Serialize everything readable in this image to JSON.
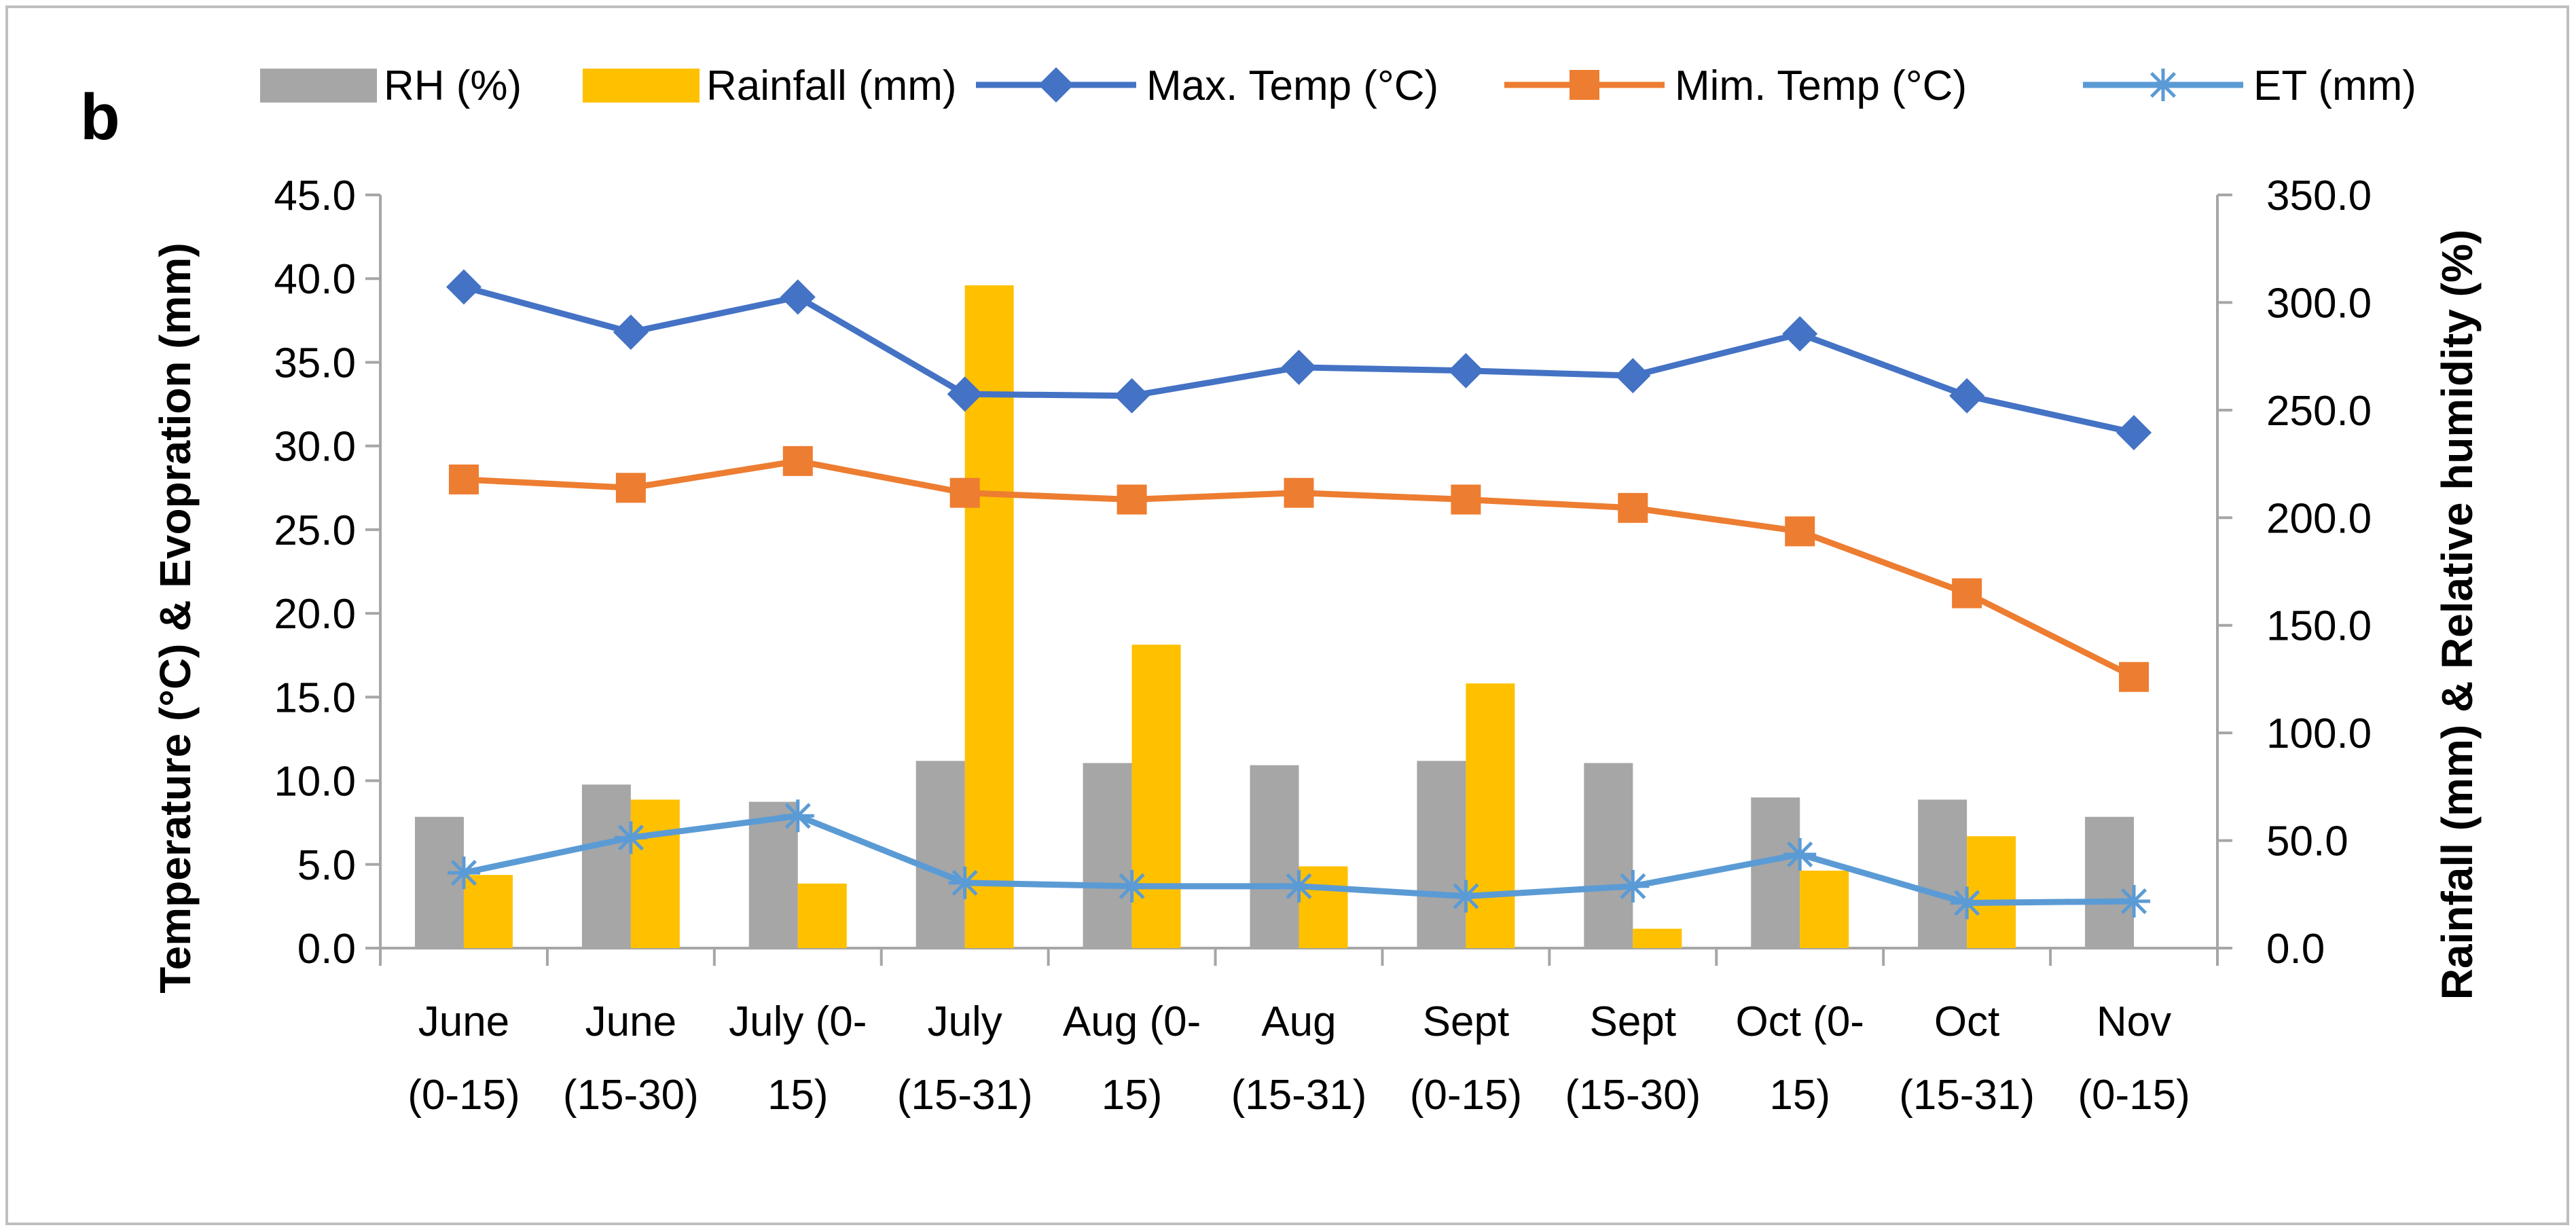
{
  "panel_label": "b",
  "colors": {
    "rh": "#a6a6a6",
    "rainfall": "#ffc000",
    "max_temp": "#4472c4",
    "min_temp": "#ed7d31",
    "et": "#5b9bd5",
    "axis": "#a6a6a6"
  },
  "chart_data": {
    "type": "bar+line (dual axis)",
    "categories": [
      [
        "June",
        "(0-15)"
      ],
      [
        "June",
        "(15-30)"
      ],
      [
        "July (0-",
        "15)"
      ],
      [
        "July",
        "(15-31)"
      ],
      [
        "Aug (0-",
        "15)"
      ],
      [
        "Aug",
        "(15-31)"
      ],
      [
        "Sept",
        "(0-15)"
      ],
      [
        "Sept",
        "(15-30)"
      ],
      [
        "Oct (0-",
        "15)"
      ],
      [
        "Oct",
        "(15-31)"
      ],
      [
        "Nov",
        "(0-15)"
      ]
    ],
    "left_axis": {
      "label": "Temperature (°C) & Evopration (mm)",
      "min": 0,
      "max": 45,
      "step": 5,
      "ticks": [
        "0.0",
        "5.0",
        "10.0",
        "15.0",
        "20.0",
        "25.0",
        "30.0",
        "35.0",
        "40.0",
        "45.0"
      ]
    },
    "right_axis": {
      "label": "Rainfall (mm) & Relative humidity (%)",
      "min": 0,
      "max": 350,
      "step": 50,
      "ticks": [
        "0.0",
        "50.0",
        "100.0",
        "150.0",
        "200.0",
        "250.0",
        "300.0",
        "350.0"
      ]
    },
    "bar_series": [
      {
        "name": "RH (%)",
        "axis": "right",
        "color_key": "rh",
        "values": [
          61,
          76,
          68,
          87,
          86,
          85,
          87,
          86,
          70,
          69,
          61
        ]
      },
      {
        "name": "Rainfall (mm)",
        "axis": "right",
        "color_key": "rainfall",
        "values": [
          34,
          69,
          30,
          308,
          141,
          38,
          123,
          9,
          36,
          52,
          0
        ]
      }
    ],
    "line_series": [
      {
        "name": "Max. Temp (°C)",
        "axis": "left",
        "color_key": "max_temp",
        "marker": "diamond",
        "values": [
          39.5,
          36.8,
          38.9,
          33.1,
          33.0,
          34.7,
          34.5,
          34.2,
          36.7,
          33.0,
          30.8
        ]
      },
      {
        "name": "Mim. Temp (°C)",
        "axis": "left",
        "color_key": "min_temp",
        "marker": "square",
        "values": [
          28.0,
          27.5,
          29.1,
          27.2,
          26.8,
          27.2,
          26.8,
          26.3,
          24.9,
          21.2,
          16.2
        ]
      },
      {
        "name": "ET (mm)",
        "axis": "left",
        "color_key": "et",
        "marker": "star",
        "values": [
          4.5,
          6.6,
          7.9,
          3.9,
          3.7,
          3.7,
          3.1,
          3.7,
          5.6,
          2.7,
          2.8
        ]
      }
    ],
    "legend_position": "top"
  }
}
